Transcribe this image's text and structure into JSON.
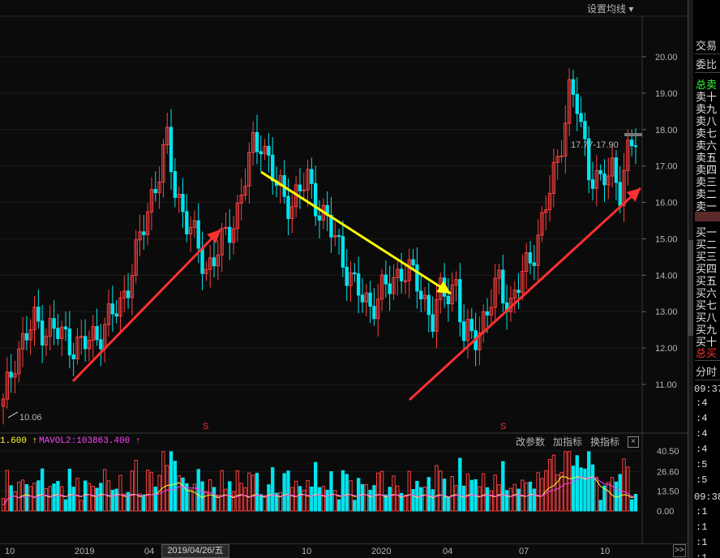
{
  "toolbar": {
    "ma_settings": "设置均线 ▾"
  },
  "price_axis": {
    "ticks": [
      "20.00",
      "19.00",
      "18.00",
      "17.00",
      "16.00",
      "15.00",
      "14.00",
      "13.00",
      "12.00",
      "11.00"
    ]
  },
  "annotations": {
    "low_label": "10.06",
    "price_tag": "17.77-17.90",
    "marker_s1": "S",
    "marker_s2": "S"
  },
  "volume": {
    "ma1_label": "1.600 ↑",
    "ma2_label": "MAVOL2:103863.400 ↑",
    "btn_params": "改参数",
    "btn_add": "加指标",
    "btn_swap": "换指标",
    "btn_close": "×",
    "ticks": [
      "40.50",
      "26.60",
      "13.50",
      "0.00"
    ]
  },
  "x_axis": {
    "labels": [
      "10",
      "2019",
      "04",
      "10",
      "2020",
      "04",
      "07",
      "10"
    ],
    "date_tip": "2019/04/26/五",
    "next": ">>"
  },
  "panel": {
    "tab1": "交易",
    "tab2": "委比",
    "total_sell": "总卖",
    "sell_levels": [
      "卖十",
      "卖九",
      "卖八",
      "卖七",
      "卖六",
      "卖五",
      "卖四",
      "卖三",
      "卖二",
      "卖一"
    ],
    "buy_levels": [
      "买一",
      "买二",
      "买三",
      "买四",
      "买五",
      "买六",
      "买七",
      "买八",
      "买九",
      "买十"
    ],
    "total_buy": "总买",
    "tab_tick": "分时",
    "times_a": "09:37",
    "secs_a": [
      ":4",
      ":4",
      ":4",
      ":4",
      ":5",
      ":5"
    ],
    "times_b": "09:38",
    "secs_b": [
      ":1",
      ":1",
      ":1",
      ":1"
    ]
  },
  "chart_data": {
    "type": "candlestick",
    "y_range": [
      10.0,
      20.3
    ],
    "volume_range": [
      0,
      40.5
    ],
    "colors": {
      "up": "#ff4040",
      "down": "#00e5ee",
      "ma1": "#ffff30",
      "ma2": "#ff40ff",
      "arrow_red": "#ff3030",
      "arrow_yellow": "#ffff00"
    }
  }
}
